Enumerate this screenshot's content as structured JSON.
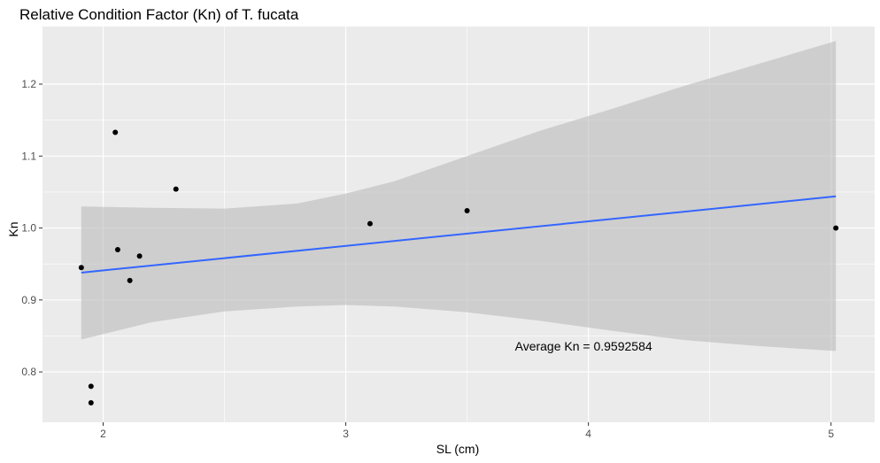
{
  "chart_data": {
    "type": "scatter",
    "title": "Relative Condition Factor (Kn) of T. fucata",
    "xlabel": "SL (cm)",
    "ylabel": "Kn",
    "xlim": [
      1.75,
      5.18
    ],
    "ylim": [
      0.73,
      1.28
    ],
    "x_ticks": [
      2,
      3,
      4,
      5
    ],
    "x_tick_labels": [
      "2",
      "3",
      "4",
      "5"
    ],
    "y_ticks": [
      0.8,
      0.9,
      1.0,
      1.1,
      1.2
    ],
    "y_tick_labels": [
      "0.8",
      "0.9",
      "1.0",
      "1.1",
      "1.2"
    ],
    "grid": true,
    "background": "#ebebeb",
    "point_color": "#000000",
    "fit_color": "#3366ff",
    "band_color": "#bdbdbd",
    "points": [
      {
        "x": 1.91,
        "y": 0.945
      },
      {
        "x": 1.95,
        "y": 0.78
      },
      {
        "x": 1.95,
        "y": 0.757
      },
      {
        "x": 2.05,
        "y": 1.133
      },
      {
        "x": 2.06,
        "y": 0.97
      },
      {
        "x": 2.11,
        "y": 0.927
      },
      {
        "x": 2.15,
        "y": 0.961
      },
      {
        "x": 2.3,
        "y": 1.054
      },
      {
        "x": 3.1,
        "y": 1.006
      },
      {
        "x": 3.5,
        "y": 1.024
      },
      {
        "x": 5.02,
        "y": 1.0
      }
    ],
    "fit_line": {
      "x": [
        1.91,
        5.02
      ],
      "y": [
        0.938,
        1.044
      ]
    },
    "confidence_band": {
      "x": [
        1.91,
        2.2,
        2.5,
        2.8,
        3.0,
        3.2,
        3.5,
        3.8,
        4.1,
        4.4,
        4.7,
        5.02
      ],
      "lower": [
        0.845,
        0.869,
        0.884,
        0.891,
        0.893,
        0.891,
        0.883,
        0.871,
        0.857,
        0.844,
        0.836,
        0.829
      ],
      "upper": [
        1.03,
        1.028,
        1.027,
        1.034,
        1.048,
        1.065,
        1.1,
        1.135,
        1.166,
        1.198,
        1.228,
        1.26
      ]
    },
    "annotations": [
      {
        "text": "Average Kn = 0.9592584",
        "x": 3.98,
        "y": 0.836
      }
    ]
  }
}
